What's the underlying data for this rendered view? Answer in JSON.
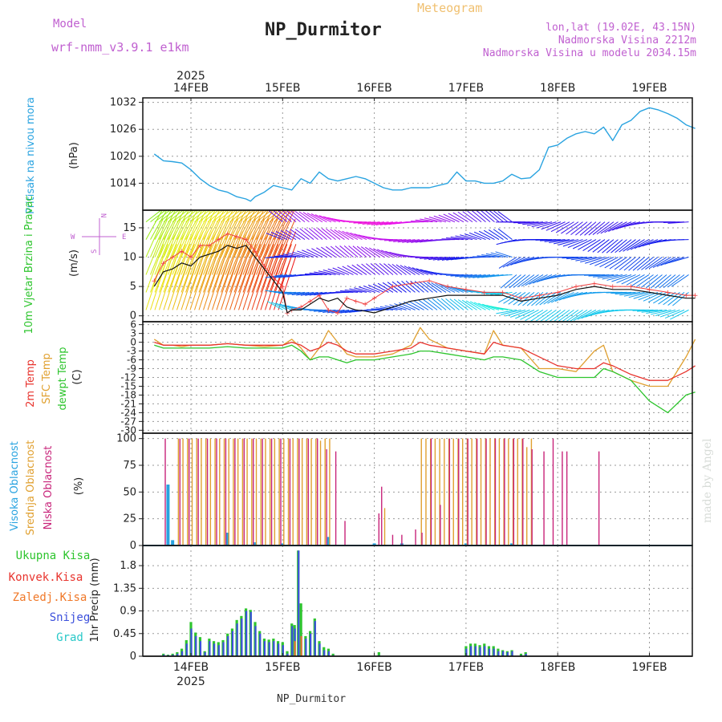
{
  "header": {
    "model_label": "Model",
    "model_name": "wrf-nmm_v3.9.1 e1km",
    "title": "NP_Durmitor",
    "meteogram_label": "Meteogram",
    "lonlat": "lon,lat (19.02E, 43.15N)",
    "elevation": "Nadmorska Visina 2212m",
    "model_elevation": "Nadmorska Visina u modelu 2034.15m"
  },
  "footer": {
    "station": "NP_Durmitor",
    "credit": "made by Angel"
  },
  "colors": {
    "pressure": "#29a3e0",
    "temp2m": "#e8342e",
    "sfc": "#e0a030",
    "dewpt": "#2ec52e",
    "high_cloud": "#29a3e0",
    "mid_cloud": "#e0a030",
    "low_cloud": "#c8247a",
    "total_precip": "#2ec52e",
    "conv_precip": "#e8342e",
    "frozen_precip": "#f07828",
    "snow": "#3c50dc",
    "graupel": "#28c8c8",
    "model": "#c060d0"
  },
  "time_axis": {
    "top_year": "2025",
    "bottom_year": "2025",
    "top_labels": [
      "14FEB",
      "15FEB",
      "16FEB",
      "17FEB",
      "18FEB",
      "19FEB"
    ],
    "bottom_labels": [
      "14FEB",
      "15FEB",
      "16FEB",
      "17FEB",
      "18FEB",
      "19FEB"
    ]
  },
  "chart_data": [
    {
      "type": "line",
      "name": "pressure",
      "ylabel_left": "Pritisak na nivou mora",
      "ylabel_unit": "(hPa)",
      "ylim": [
        1008,
        1033
      ],
      "yticks": [
        "1014",
        "1020",
        "1026",
        "1032"
      ],
      "grid": true,
      "x": [
        13.6,
        13.7,
        13.8,
        13.9,
        14.0,
        14.1,
        14.2,
        14.3,
        14.4,
        14.5,
        14.6,
        14.65,
        14.7,
        14.8,
        14.9,
        15.0,
        15.1,
        15.2,
        15.3,
        15.4,
        15.5,
        15.6,
        15.7,
        15.8,
        15.9,
        16.0,
        16.1,
        16.2,
        16.3,
        16.4,
        16.5,
        16.6,
        16.7,
        16.8,
        16.9,
        17.0,
        17.1,
        17.2,
        17.3,
        17.4,
        17.5,
        17.6,
        17.7,
        17.8,
        17.9,
        18.0,
        18.1,
        18.2,
        18.3,
        18.4,
        18.5,
        18.6,
        18.7,
        18.8,
        18.9,
        19.0,
        19.1,
        19.2,
        19.3,
        19.4,
        19.5
      ],
      "series": [
        {
          "values": [
            1020.5,
            1019,
            1018.8,
            1018.5,
            1017,
            1015,
            1013.5,
            1012.5,
            1012,
            1011,
            1010.5,
            1010,
            1011,
            1012,
            1013.5,
            1013,
            1012.5,
            1015,
            1014,
            1016.5,
            1015,
            1014.5,
            1015,
            1015.5,
            1015,
            1014,
            1013,
            1012.5,
            1012.5,
            1013,
            1013,
            1013,
            1013.5,
            1014,
            1016.5,
            1014.5,
            1014.5,
            1014,
            1014,
            1014.5,
            1016,
            1015,
            1015.2,
            1017,
            1022,
            1022.5,
            1024,
            1025,
            1025.5,
            1025,
            1026.5,
            1023.5,
            1027,
            1028,
            1030,
            1030.8,
            1030.3,
            1029.5,
            1028.5,
            1027,
            1026.2
          ]
        }
      ]
    },
    {
      "type": "line",
      "name": "wind",
      "ylabel_left": "10m Vjetar Brzina i Pravac",
      "ylabel_unit": "(m/s)",
      "compass": {
        "n": "N",
        "s": "S",
        "e": "E",
        "w": "W"
      },
      "ylim": [
        -1,
        18
      ],
      "yticks": [
        "0",
        "5",
        "10",
        "15"
      ],
      "grid": true,
      "x": [
        13.6,
        13.7,
        13.8,
        13.9,
        14.0,
        14.1,
        14.2,
        14.3,
        14.4,
        14.5,
        14.6,
        14.7,
        14.8,
        14.9,
        15.0,
        15.05,
        15.1,
        15.2,
        15.3,
        15.4,
        15.5,
        15.6,
        15.7,
        15.8,
        15.9,
        16.0,
        16.2,
        16.4,
        16.6,
        16.8,
        17.0,
        17.2,
        17.4,
        17.6,
        17.8,
        18.0,
        18.2,
        18.4,
        18.6,
        18.8,
        19.0,
        19.2,
        19.4,
        19.5
      ],
      "series": [
        {
          "name": "speed",
          "values": [
            5,
            7.5,
            8,
            9,
            8.5,
            10,
            10.5,
            11,
            12,
            11.5,
            12,
            10,
            8,
            6,
            4,
            0.5,
            1,
            1,
            2,
            3,
            2.5,
            3,
            1.5,
            1,
            0.8,
            0.5,
            1.5,
            2.5,
            3,
            3.5,
            3.5,
            3.5,
            3.5,
            2.5,
            3,
            3.5,
            4.5,
            5,
            4.5,
            4.5,
            4,
            3.5,
            3,
            3
          ]
        },
        {
          "name": "gust",
          "values": [
            6,
            9,
            10,
            11,
            10,
            12,
            12,
            13,
            14,
            13.5,
            13,
            11,
            8.5,
            6.5,
            5,
            0.5,
            1,
            1.5,
            2.5,
            3.5,
            1,
            0.5,
            3,
            2.5,
            2,
            3,
            5,
            5.5,
            6,
            5,
            4.5,
            4,
            4,
            3,
            3.5,
            4,
            5,
            5.5,
            5,
            5,
            4.5,
            4,
            3.5,
            3.5
          ]
        }
      ],
      "barb_rows": [
        1,
        4,
        7,
        10,
        13,
        16
      ]
    },
    {
      "type": "line",
      "name": "temperature",
      "ylabel_left": [
        "2m Temp",
        "SFC Temp",
        "dewpt Temp"
      ],
      "ylabel_unit": "(C)",
      "ylim": [
        -31,
        7
      ],
      "yticks": [
        "6",
        "3",
        "0",
        "-3",
        "-6",
        "-9",
        "-12",
        "-15",
        "-18",
        "-21",
        "-24",
        "-27",
        "-30"
      ],
      "grid": true,
      "x": [
        13.6,
        13.7,
        13.8,
        13.9,
        14.0,
        14.2,
        14.4,
        14.6,
        14.8,
        15.0,
        15.1,
        15.2,
        15.3,
        15.4,
        15.5,
        15.6,
        15.7,
        15.8,
        16.0,
        16.2,
        16.4,
        16.5,
        16.6,
        16.8,
        17.0,
        17.2,
        17.3,
        17.4,
        17.6,
        17.8,
        18.0,
        18.2,
        18.4,
        18.5,
        18.6,
        18.8,
        19.0,
        19.2,
        19.4,
        19.5
      ],
      "series": [
        {
          "name": "2m Temp",
          "values": [
            0,
            -1,
            -1,
            -1,
            -1,
            -1,
            -0.5,
            -1,
            -1,
            -1,
            0,
            -1,
            -3,
            -2,
            0,
            -1,
            -3,
            -4,
            -4,
            -3,
            -2,
            0,
            -1,
            -2,
            -3,
            -4,
            0,
            -1,
            -2,
            -5,
            -8,
            -9,
            -9,
            -7,
            -8,
            -11,
            -13,
            -13,
            -10,
            -8
          ]
        },
        {
          "name": "SFC Temp",
          "values": [
            1,
            -1,
            -1,
            -1.5,
            -1,
            -1,
            -0.5,
            -1,
            -1.5,
            -1,
            1,
            -2,
            -6,
            -2,
            4,
            0,
            -4,
            -5,
            -5,
            -4,
            -1,
            5,
            1,
            -2,
            -3,
            -4,
            4,
            -1,
            -2,
            -9,
            -9,
            -10,
            -3,
            -1,
            -10,
            -13,
            -15,
            -15,
            -5,
            1
          ]
        },
        {
          "name": "dewpt Temp",
          "values": [
            -1,
            -2,
            -2,
            -2,
            -2,
            -2,
            -1.5,
            -2,
            -2,
            -2,
            -1,
            -3,
            -6,
            -5,
            -5,
            -6,
            -7,
            -6,
            -6,
            -5,
            -4,
            -3,
            -3,
            -4,
            -5,
            -6,
            -5,
            -5,
            -6,
            -10,
            -12,
            -12,
            -12,
            -9,
            -10,
            -13,
            -20,
            -24,
            -18,
            -17
          ]
        }
      ]
    },
    {
      "type": "bar",
      "name": "cloud",
      "ylabel_left": [
        "Visoka Oblacnost",
        "Srednja Oblacnost",
        "Niska Oblacnost"
      ],
      "ylabel_unit": "(%)",
      "ylim": [
        0,
        100
      ],
      "yticks": [
        "0",
        "25",
        "50",
        "75",
        "100"
      ],
      "grid": true,
      "series": [
        {
          "name": "Visoka Oblacnost",
          "x": [
            13.75,
            13.8,
            14.4,
            14.7,
            15.0,
            15.5,
            16.0,
            16.3,
            17.0,
            17.5
          ],
          "values": [
            57,
            5,
            12,
            3,
            2,
            8,
            2,
            2,
            2,
            2
          ]
        },
        {
          "name": "Srednja Oblacnost",
          "x": [
            13.85,
            13.9,
            13.95,
            14.0,
            14.05,
            14.1,
            14.15,
            14.2,
            14.25,
            14.3,
            14.35,
            14.4,
            14.45,
            14.5,
            14.55,
            14.6,
            14.65,
            14.7,
            14.75,
            14.8,
            14.85,
            14.9,
            14.95,
            15.0,
            15.05,
            15.1,
            15.15,
            15.2,
            15.25,
            15.3,
            15.35,
            15.4,
            15.45,
            15.5,
            16.1,
            16.5,
            16.55,
            16.6,
            16.65,
            16.7,
            16.75,
            16.8,
            16.85,
            16.9,
            16.95,
            17.0,
            17.05,
            17.1,
            17.15,
            17.2,
            17.25,
            17.3,
            17.35,
            17.4,
            17.45,
            17.5,
            17.55,
            17.6,
            17.65,
            17.7
          ],
          "values": [
            100,
            100,
            100,
            100,
            100,
            100,
            100,
            100,
            100,
            100,
            100,
            100,
            100,
            100,
            100,
            100,
            100,
            100,
            100,
            100,
            100,
            100,
            100,
            100,
            100,
            100,
            100,
            100,
            100,
            100,
            100,
            98,
            100,
            100,
            35,
            100,
            100,
            100,
            100,
            100,
            100,
            100,
            100,
            100,
            100,
            100,
            100,
            100,
            100,
            100,
            100,
            100,
            100,
            100,
            100,
            100,
            100,
            100,
            92,
            100
          ]
        },
        {
          "name": "Niska Oblacnost",
          "x": [
            13.72,
            13.88,
            13.98,
            14.08,
            14.18,
            14.28,
            14.38,
            14.48,
            14.58,
            14.68,
            14.78,
            14.88,
            14.98,
            15.08,
            15.18,
            15.28,
            15.38,
            15.48,
            15.58,
            15.68,
            16.05,
            16.08,
            16.2,
            16.3,
            16.45,
            16.52,
            16.62,
            16.72,
            16.82,
            16.92,
            17.02,
            17.12,
            17.22,
            17.32,
            17.42,
            17.52,
            17.62,
            17.72,
            17.85,
            17.95,
            18.05,
            18.1,
            18.45
          ],
          "values": [
            100,
            100,
            100,
            100,
            100,
            100,
            100,
            100,
            100,
            100,
            100,
            100,
            100,
            100,
            100,
            100,
            100,
            90,
            88,
            23,
            30,
            55,
            10,
            10,
            15,
            12,
            100,
            38,
            100,
            100,
            100,
            100,
            100,
            100,
            100,
            100,
            100,
            90,
            88,
            100,
            88,
            88,
            88
          ]
        }
      ]
    },
    {
      "type": "bar",
      "name": "precip",
      "legend": [
        "Ukupna Kisa",
        "Konvek.Kisa",
        "Zaledj.Kisa",
        "Snijeg",
        "Grad"
      ],
      "ylabel_unit": "1hr Precip (mm)",
      "ylim": [
        0,
        2.2
      ],
      "yticks": [
        "0",
        "0.45",
        "0.9",
        "1.35",
        "1.8"
      ],
      "grid": true,
      "x": [
        13.7,
        13.75,
        13.8,
        13.85,
        13.9,
        13.95,
        14.0,
        14.05,
        14.1,
        14.15,
        14.2,
        14.25,
        14.3,
        14.35,
        14.4,
        14.45,
        14.5,
        14.55,
        14.6,
        14.65,
        14.7,
        14.75,
        14.8,
        14.85,
        14.9,
        14.95,
        15.0,
        15.05,
        15.1,
        15.13,
        15.17,
        15.2,
        15.25,
        15.3,
        15.35,
        15.4,
        15.45,
        15.5,
        15.55,
        16.05,
        17.0,
        17.05,
        17.1,
        17.15,
        17.2,
        17.25,
        17.3,
        17.35,
        17.4,
        17.45,
        17.5,
        17.6,
        17.65
      ],
      "series": [
        {
          "name": "Ukupna Kisa",
          "values": [
            0.05,
            0.03,
            0.05,
            0.08,
            0.15,
            0.32,
            0.68,
            0.47,
            0.38,
            0.1,
            0.35,
            0.3,
            0.28,
            0.32,
            0.45,
            0.55,
            0.72,
            0.8,
            0.95,
            0.92,
            0.68,
            0.5,
            0.35,
            0.33,
            0.35,
            0.3,
            0.28,
            0.1,
            0.65,
            0.62,
            2.1,
            1.05,
            0.4,
            0.5,
            0.75,
            0.3,
            0.18,
            0.15,
            0.05,
            0.08,
            0.2,
            0.25,
            0.25,
            0.22,
            0.25,
            0.2,
            0.2,
            0.15,
            0.12,
            0.1,
            0.12,
            0.05,
            0.08
          ]
        },
        {
          "name": "Zaledj.Kisa",
          "values": [
            0,
            0,
            0,
            0,
            0,
            0,
            0,
            0,
            0,
            0,
            0,
            0,
            0,
            0,
            0,
            0,
            0,
            0,
            0,
            0,
            0,
            0,
            0,
            0,
            0,
            0,
            0,
            0,
            0,
            0.3,
            0,
            0.4,
            0,
            0,
            0,
            0,
            0,
            0,
            0,
            0,
            0,
            0,
            0,
            0,
            0,
            0,
            0,
            0,
            0,
            0,
            0,
            0,
            0
          ]
        },
        {
          "name": "Snijeg",
          "values": [
            0.03,
            0.02,
            0.03,
            0.05,
            0.1,
            0.25,
            0.55,
            0.4,
            0.3,
            0.08,
            0.3,
            0.25,
            0.22,
            0.28,
            0.4,
            0.5,
            0.65,
            0.75,
            0.9,
            0.88,
            0.6,
            0.45,
            0.3,
            0.28,
            0.3,
            0.25,
            0.22,
            0.05,
            0.6,
            0.55,
            2.1,
            0.4,
            0.35,
            0.45,
            0.7,
            0.25,
            0.12,
            0.1,
            0.02,
            0.02,
            0.15,
            0.2,
            0.2,
            0.18,
            0.2,
            0.15,
            0.15,
            0.1,
            0.1,
            0.08,
            0.1,
            0.02,
            0.05
          ]
        }
      ]
    }
  ]
}
